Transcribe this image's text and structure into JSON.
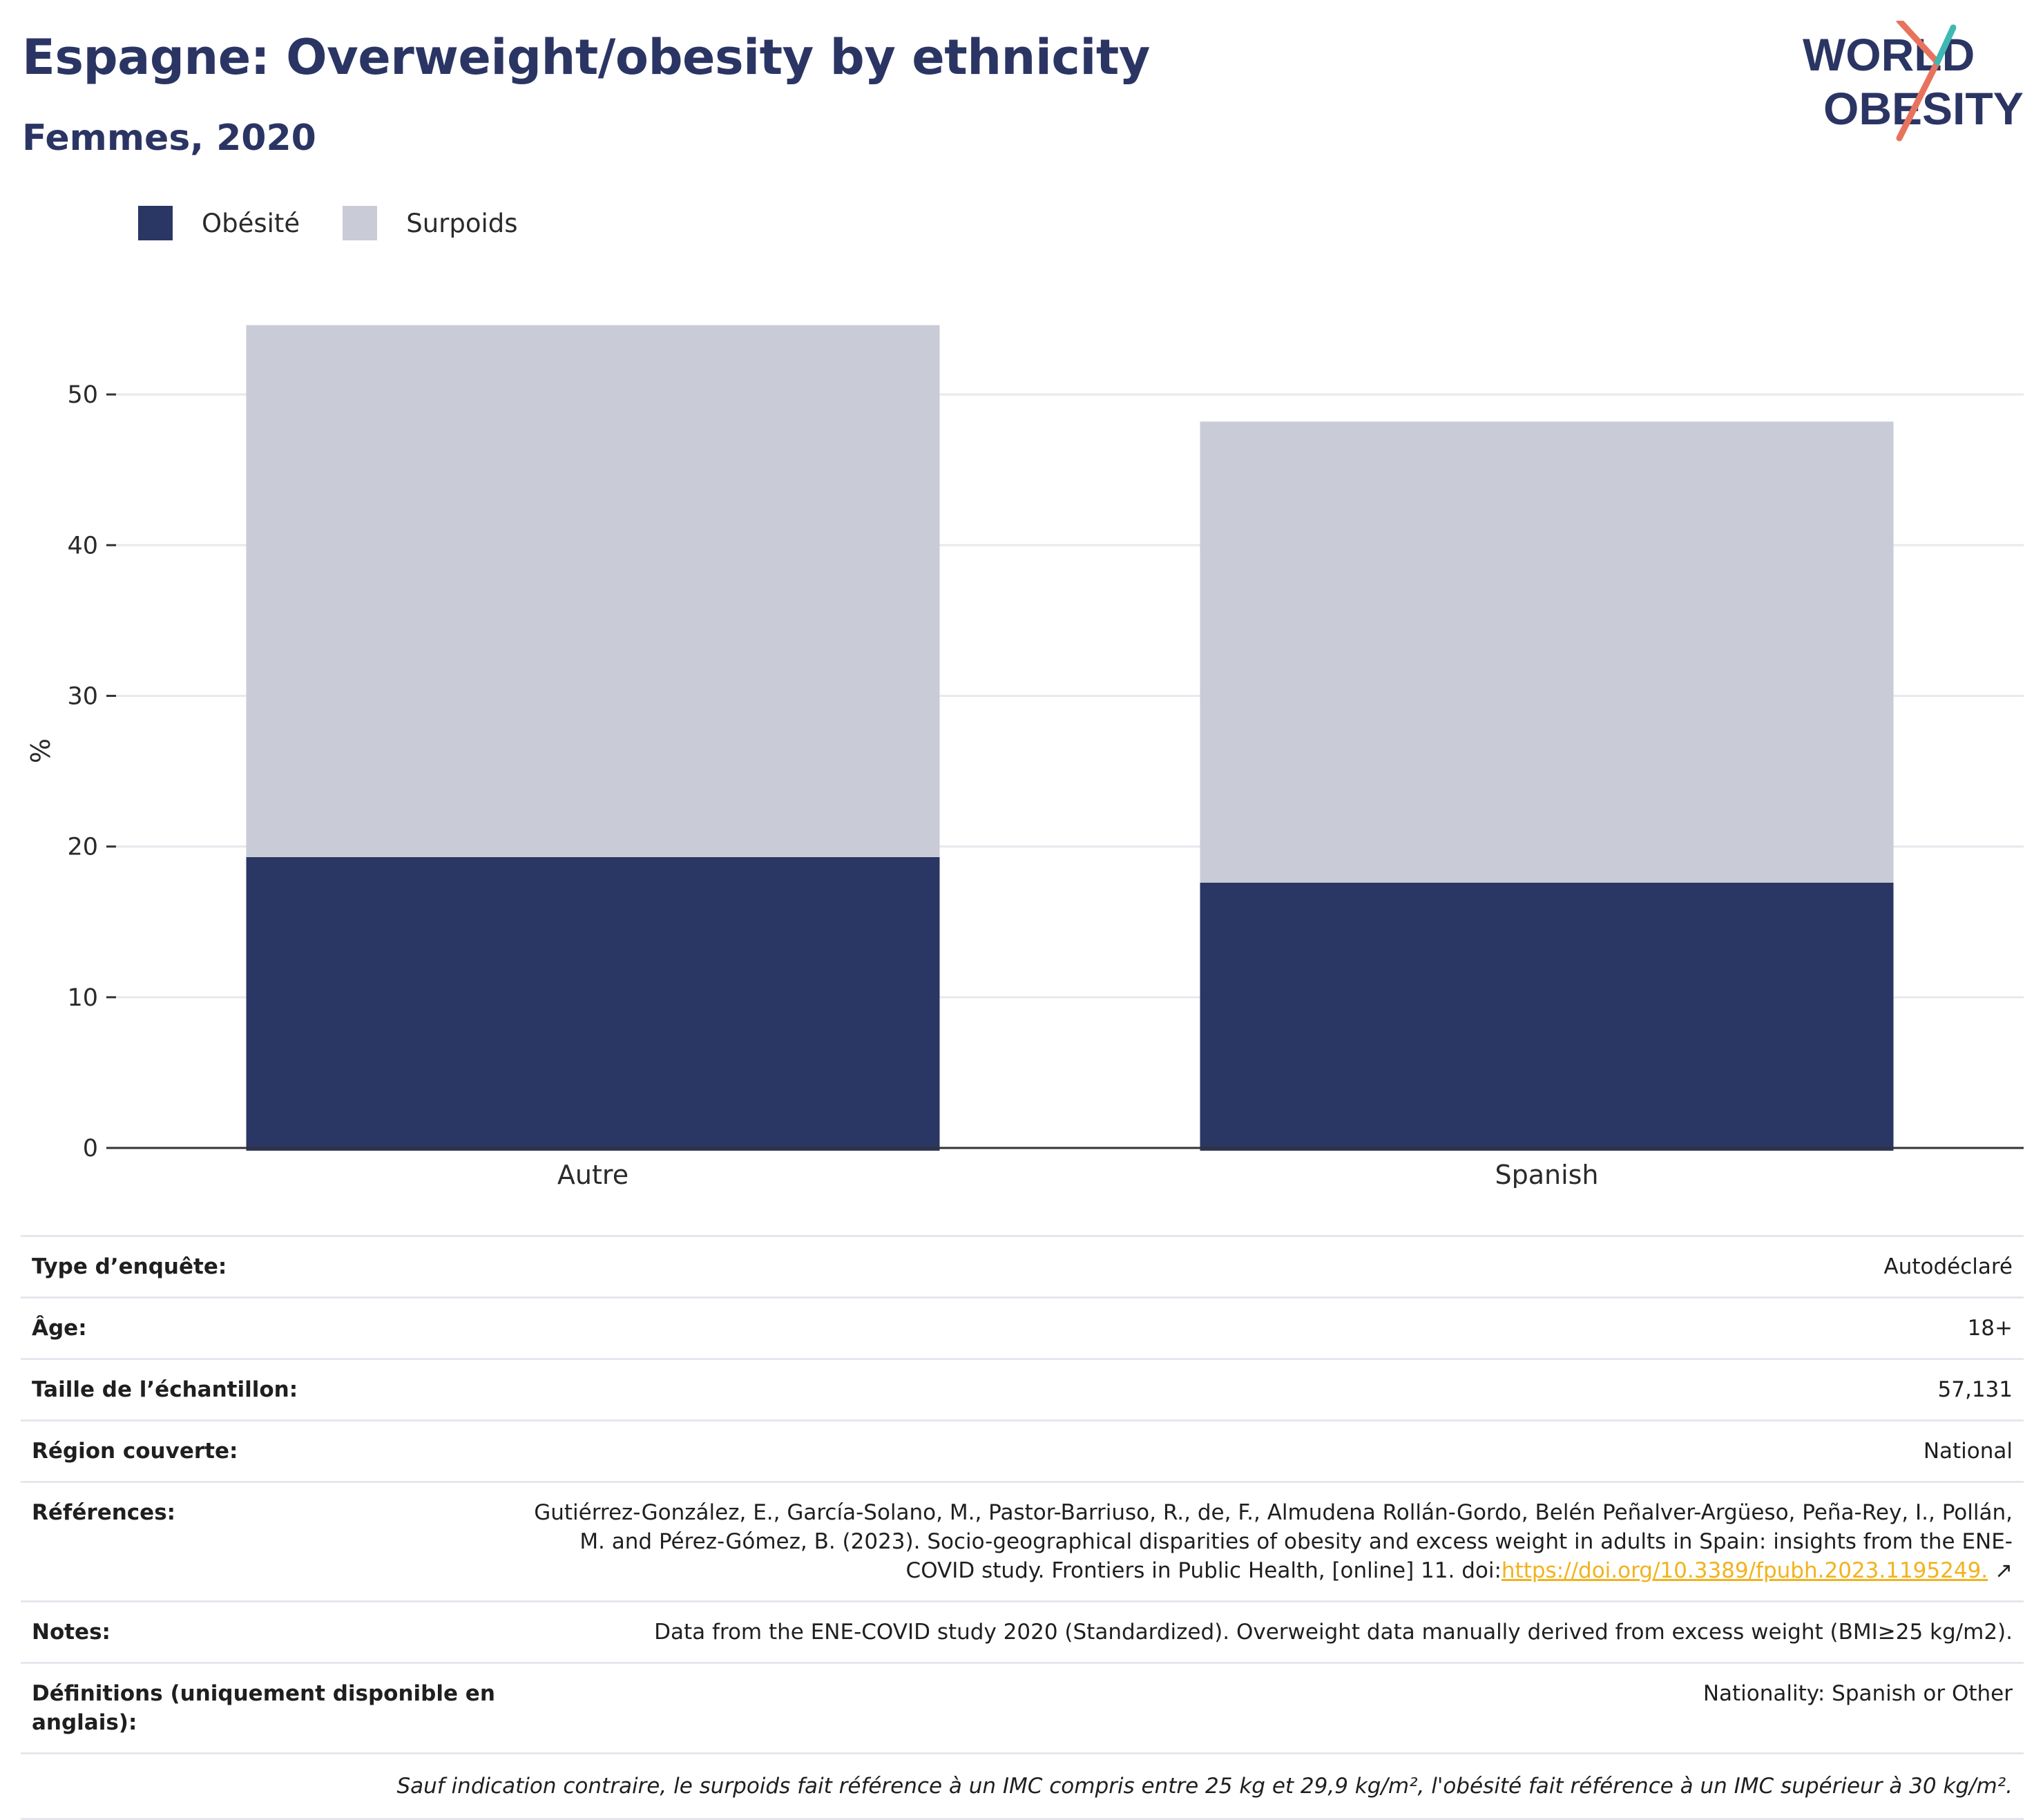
{
  "header": {
    "title": "Espagne: Overweight/obesity by ethnicity",
    "subtitle": "Femmes, 2020",
    "logo_line1": "WORLD",
    "logo_line2": "OBESITY"
  },
  "colors": {
    "obesity": "#2a3663",
    "overweight": "#c9cbd6",
    "axis": "#333333",
    "grid": "#e8e8ee",
    "link": "#f2b21e",
    "title": "#2b3564"
  },
  "legend": [
    {
      "label": "Obésité",
      "color": "#2a3663"
    },
    {
      "label": "Surpoids",
      "color": "#c9cbd6"
    }
  ],
  "chart_data": {
    "type": "bar",
    "stacked": true,
    "categories": [
      "Autre",
      "Spanish"
    ],
    "series": [
      {
        "name": "Obésité",
        "values": [
          19.3,
          17.6
        ]
      },
      {
        "name": "Surpoids",
        "values": [
          35.3,
          30.6
        ]
      }
    ],
    "ylabel": "%",
    "ylim": [
      0,
      55
    ],
    "yticks": [
      0,
      10,
      20,
      30,
      40,
      50
    ],
    "grid": true
  },
  "meta": {
    "rows": [
      {
        "label": "Type d’enquête:",
        "value": "Autodéclaré"
      },
      {
        "label": "Âge:",
        "value": "18+"
      },
      {
        "label": "Taille de l’échantillon:",
        "value": "57,131"
      },
      {
        "label": "Région couverte:",
        "value": "National"
      }
    ],
    "references_label": "Références:",
    "references_text": "Gutiérrez-González, E., García-Solano, M., Pastor-Barriuso, R., de, F., Almudena Rollán-Gordo, Belén Peñalver-Argüeso, Peña-Rey, I., Pollán, M. and Pérez-Gómez, B. (2023). Socio-geographical disparities of obesity and excess weight in adults in Spain: insights from the ENE-COVID study. Frontiers in Public Health, [online] 11. doi:",
    "references_link": "https://doi.org/10.3389/fpubh.2023.1195249.",
    "notes_label": "Notes:",
    "notes_value": "Data from the ENE-COVID study 2020 (Standardized). Overweight data manually derived from excess weight (BMI≥25 kg/m2).",
    "definitions_label": "Définitions (uniquement disponible en anglais):",
    "definitions_value": "Nationality: Spanish or Other",
    "footnote": "Sauf indication contraire, le surpoids fait référence à un IMC compris entre 25 kg et 29,9 kg/m², l'obésité fait référence à un IMC supérieur à 30 kg/m²."
  }
}
